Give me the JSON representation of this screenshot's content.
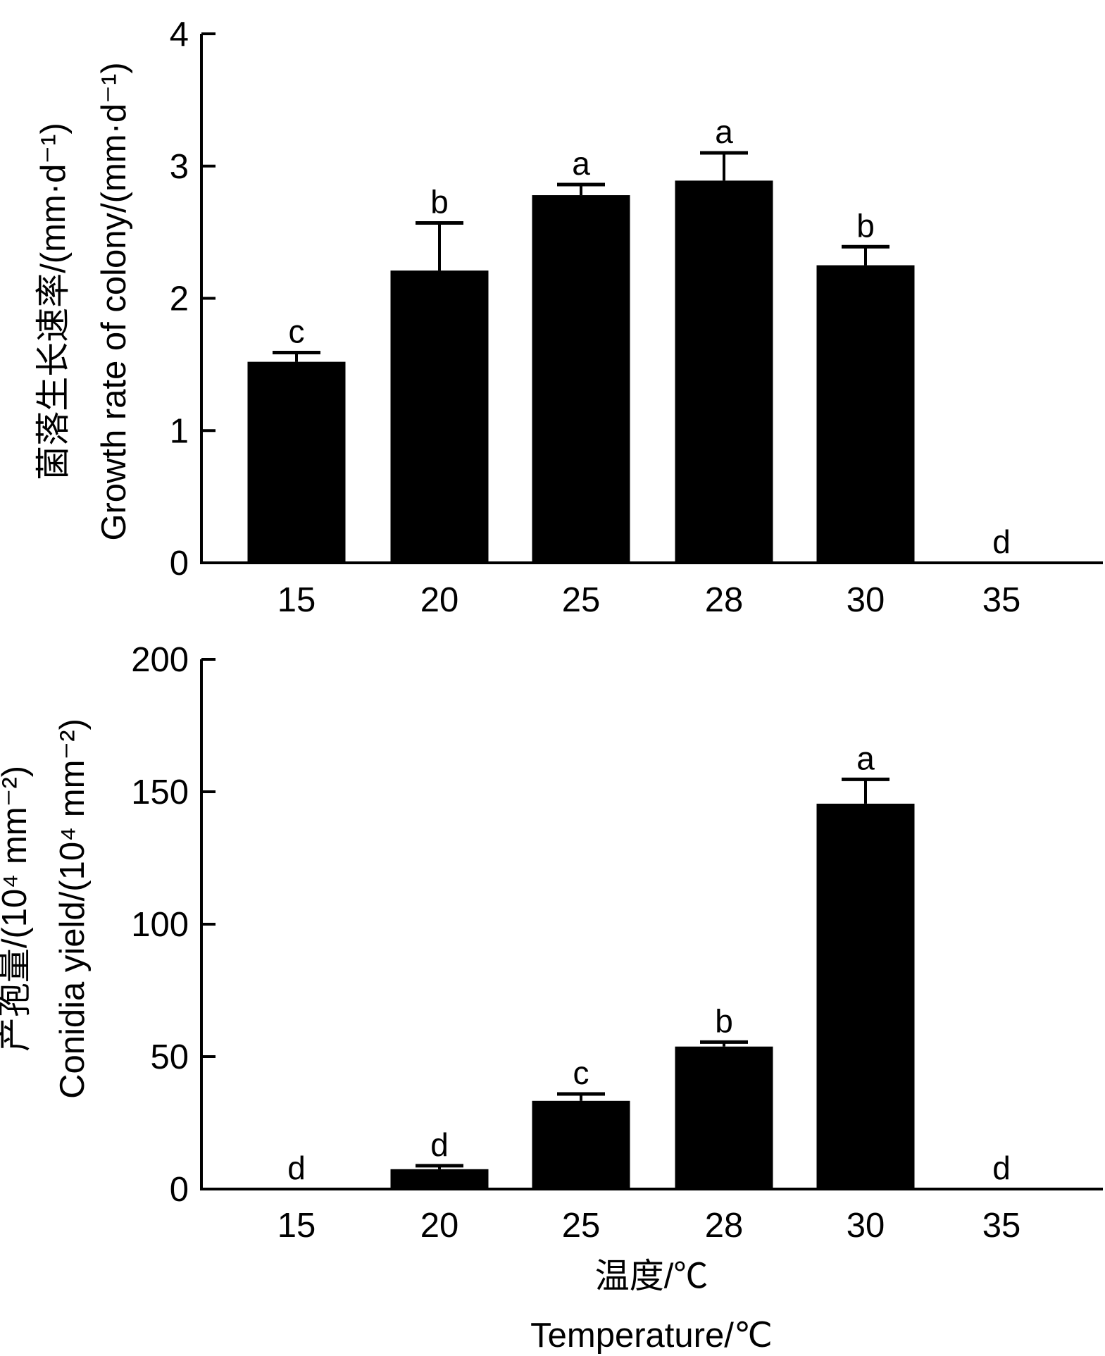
{
  "chart_data": [
    {
      "type": "bar",
      "categories": [
        "15",
        "20",
        "25",
        "28",
        "30",
        "35"
      ],
      "values": [
        1.52,
        2.21,
        2.78,
        2.89,
        2.25,
        0
      ],
      "error_upper": [
        1.59,
        2.57,
        2.86,
        3.1,
        2.39,
        0
      ],
      "significance": [
        "c",
        "b",
        "a",
        "a",
        "b",
        "d"
      ],
      "ylabel_cn": "菌落生长速率/(mm·d⁻¹)",
      "ylabel": "Growth rate of colony/(mm·d⁻¹)",
      "ylim": [
        0,
        4
      ],
      "yticks": [
        "0",
        "1",
        "2",
        "3",
        "4"
      ],
      "bar_color": "#000000"
    },
    {
      "type": "bar",
      "categories": [
        "15",
        "20",
        "25",
        "28",
        "30",
        "35"
      ],
      "values": [
        0,
        7.5,
        33.3,
        53.8,
        145.5,
        0
      ],
      "error_upper": [
        0,
        8.8,
        35.9,
        55.5,
        154.7,
        0
      ],
      "significance": [
        "d",
        "d",
        "c",
        "b",
        "a",
        "d"
      ],
      "ylabel_cn": "产孢量/(10⁴ mm⁻²)",
      "ylabel": "Conidia yield/(10⁴ mm⁻²)",
      "xlabel_cn": "温度/℃",
      "xlabel": "Temperature/℃",
      "ylim": [
        0,
        200
      ],
      "yticks": [
        "0",
        "50",
        "100",
        "150",
        "200"
      ],
      "bar_color": "#000000"
    }
  ]
}
